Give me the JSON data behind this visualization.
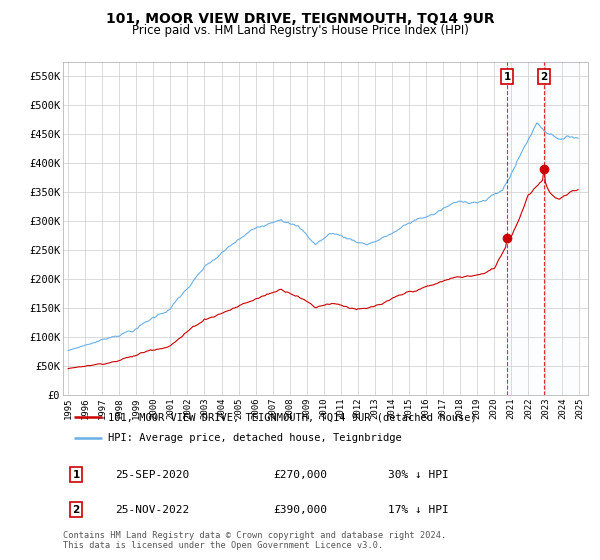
{
  "title": "101, MOOR VIEW DRIVE, TEIGNMOUTH, TQ14 9UR",
  "subtitle": "Price paid vs. HM Land Registry's House Price Index (HPI)",
  "ylabel_ticks": [
    "£0",
    "£50K",
    "£100K",
    "£150K",
    "£200K",
    "£250K",
    "£300K",
    "£350K",
    "£400K",
    "£450K",
    "£500K",
    "£550K"
  ],
  "ytick_values": [
    0,
    50000,
    100000,
    150000,
    200000,
    250000,
    300000,
    350000,
    400000,
    450000,
    500000,
    550000
  ],
  "ylim": [
    0,
    575000
  ],
  "hpi_color": "#6ab0e8",
  "price_color": "#cc0000",
  "sale1_year": 2020.75,
  "sale1_price": 270000,
  "sale1_date": "25-SEP-2020",
  "sale1_label": "30% ↓ HPI",
  "sale2_year": 2022.917,
  "sale2_price": 390000,
  "sale2_date": "25-NOV-2022",
  "sale2_label": "17% ↓ HPI",
  "legend_line1": "101, MOOR VIEW DRIVE, TEIGNMOUTH, TQ14 9UR (detached house)",
  "legend_line2": "HPI: Average price, detached house, Teignbridge",
  "footer": "Contains HM Land Registry data © Crown copyright and database right 2024.\nThis data is licensed under the Open Government Licence v3.0.",
  "grid_color": "#cccccc",
  "vline_color": "#cc0000",
  "shade_color": "#ddeeff"
}
